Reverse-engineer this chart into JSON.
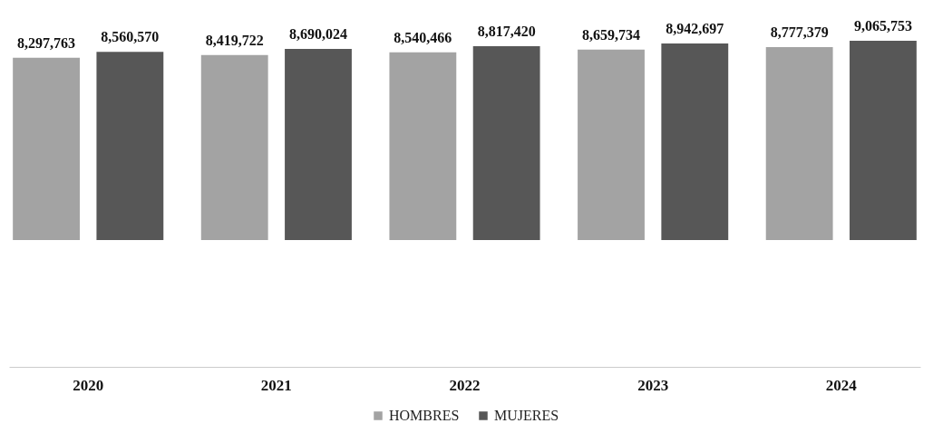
{
  "chart_data": {
    "type": "bar",
    "categories": [
      "2020",
      "2021",
      "2022",
      "2023",
      "2024"
    ],
    "series": [
      {
        "name": "HOMBRES",
        "color": "#a3a3a3",
        "values": [
          8297763,
          8419722,
          8540466,
          8659734,
          8777379
        ],
        "value_labels": [
          "8,297,763",
          "8,419,722",
          "8,540,466",
          "8,659,734",
          "8,777,379"
        ]
      },
      {
        "name": "MUJERES",
        "color": "#575757",
        "values": [
          8560570,
          8690024,
          8817420,
          8942697,
          9065753
        ],
        "value_labels": [
          "8,560,570",
          "8,690,024",
          "8,817,420",
          "8,942,697",
          "9,065,753"
        ]
      }
    ],
    "legend": "bottom",
    "grid": false,
    "tick_labels": "x"
  }
}
